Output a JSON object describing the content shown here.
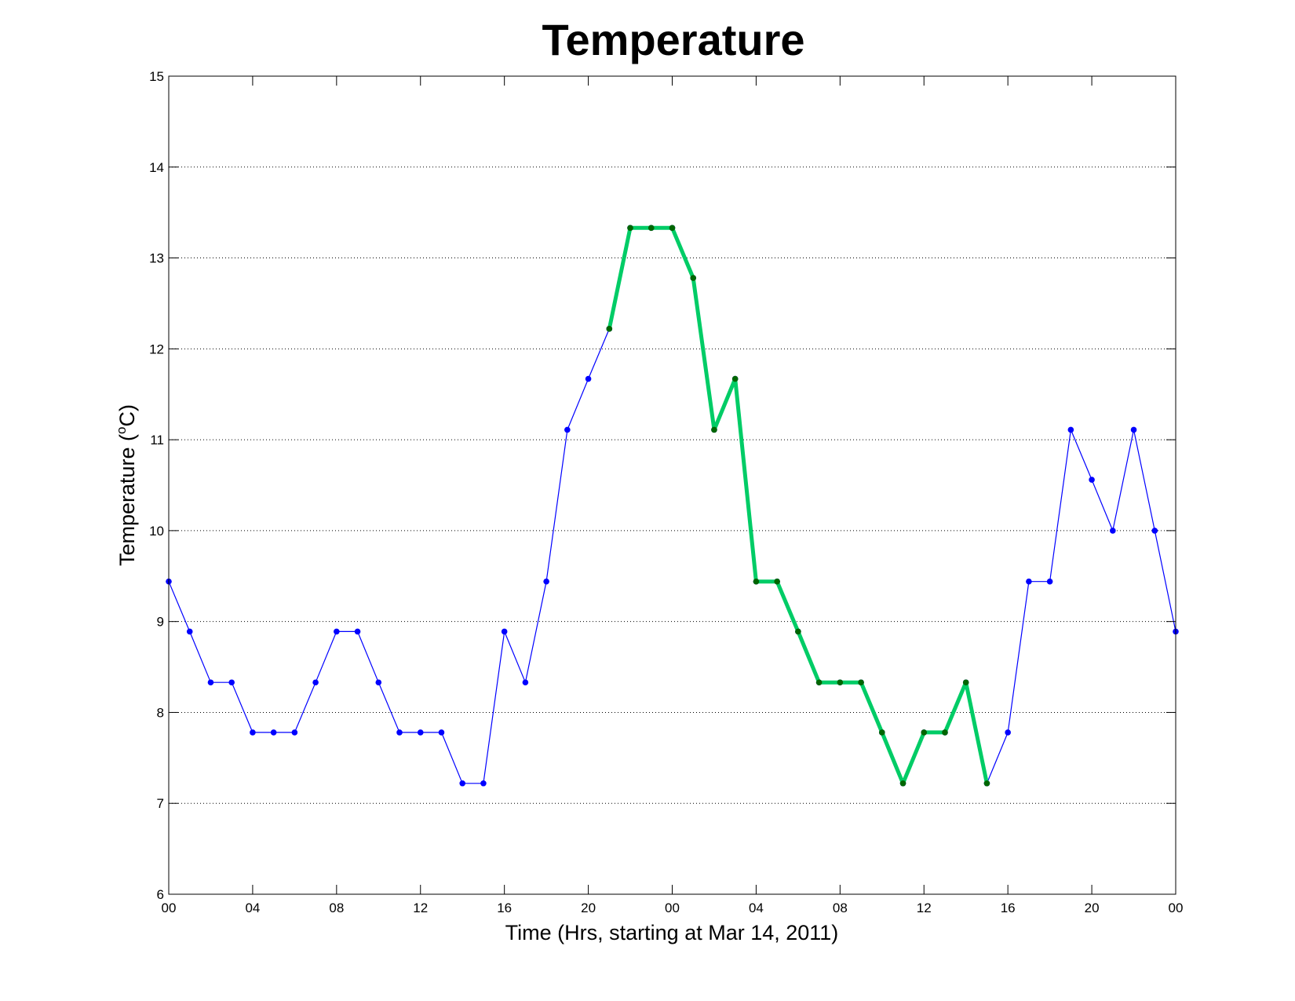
{
  "chart_data": {
    "type": "line",
    "title": "Temperature",
    "xlabel": "Time (Hrs, starting at Mar 14, 2011)",
    "ylabel_main": "Temperature (",
    "ylabel_unit": "o",
    "ylabel_tail": "C)",
    "xlim": [
      0,
      48
    ],
    "ylim": [
      6,
      15
    ],
    "x_ticks": [
      {
        "x": 0,
        "label": "00"
      },
      {
        "x": 4,
        "label": "04"
      },
      {
        "x": 8,
        "label": "08"
      },
      {
        "x": 12,
        "label": "12"
      },
      {
        "x": 16,
        "label": "16"
      },
      {
        "x": 20,
        "label": "20"
      },
      {
        "x": 24,
        "label": "00"
      },
      {
        "x": 28,
        "label": "04"
      },
      {
        "x": 32,
        "label": "08"
      },
      {
        "x": 36,
        "label": "12"
      },
      {
        "x": 40,
        "label": "16"
      },
      {
        "x": 44,
        "label": "20"
      },
      {
        "x": 48,
        "label": "00"
      }
    ],
    "y_ticks": [
      {
        "y": 6,
        "label": "6"
      },
      {
        "y": 7,
        "label": "7"
      },
      {
        "y": 8,
        "label": "8"
      },
      {
        "y": 9,
        "label": "9"
      },
      {
        "y": 10,
        "label": "10"
      },
      {
        "y": 11,
        "label": "11"
      },
      {
        "y": 12,
        "label": "12"
      },
      {
        "y": 13,
        "label": "13"
      },
      {
        "y": 14,
        "label": "14"
      },
      {
        "y": 15,
        "label": "15"
      }
    ],
    "grid": "horizontal dotted",
    "series": [
      {
        "color": "#0000ff",
        "marker_color": "#0000ff",
        "style": "thin line with dot markers",
        "points": [
          [
            0,
            9.44
          ],
          [
            1,
            8.89
          ],
          [
            2,
            8.33
          ],
          [
            3,
            8.33
          ],
          [
            4,
            7.78
          ],
          [
            5,
            7.78
          ],
          [
            6,
            7.78
          ],
          [
            7,
            8.33
          ],
          [
            8,
            8.89
          ],
          [
            9,
            8.89
          ],
          [
            10,
            8.33
          ],
          [
            11,
            7.78
          ],
          [
            12,
            7.78
          ],
          [
            13,
            7.78
          ],
          [
            14,
            7.22
          ],
          [
            15,
            7.22
          ],
          [
            16,
            8.89
          ],
          [
            17,
            8.33
          ],
          [
            18,
            9.44
          ],
          [
            19,
            11.11
          ],
          [
            20,
            11.67
          ],
          [
            21,
            12.22
          ],
          [
            22,
            13.33
          ],
          [
            23,
            13.33
          ],
          [
            24,
            13.33
          ],
          [
            25,
            12.78
          ],
          [
            26,
            11.11
          ],
          [
            27,
            11.67
          ],
          [
            28,
            9.44
          ],
          [
            29,
            9.44
          ],
          [
            30,
            8.89
          ],
          [
            31,
            8.33
          ],
          [
            32,
            8.33
          ],
          [
            33,
            8.33
          ],
          [
            34,
            7.78
          ],
          [
            35,
            7.22
          ],
          [
            36,
            7.78
          ],
          [
            37,
            7.78
          ],
          [
            38,
            8.33
          ],
          [
            39,
            7.22
          ],
          [
            40,
            7.78
          ],
          [
            41,
            9.44
          ],
          [
            42,
            9.44
          ],
          [
            43,
            11.11
          ],
          [
            44,
            10.56
          ],
          [
            45,
            10.0
          ],
          [
            46,
            11.11
          ],
          [
            47,
            10.0
          ],
          [
            48,
            8.89
          ]
        ]
      },
      {
        "color": "#00cc66",
        "marker_color": "#006600",
        "style": "thick line with dot markers",
        "points": [
          [
            21,
            12.22
          ],
          [
            22,
            13.33
          ],
          [
            23,
            13.33
          ],
          [
            24,
            13.33
          ],
          [
            25,
            12.78
          ],
          [
            26,
            11.11
          ],
          [
            27,
            11.67
          ],
          [
            28,
            9.44
          ],
          [
            29,
            9.44
          ],
          [
            30,
            8.89
          ],
          [
            31,
            8.33
          ],
          [
            32,
            8.33
          ],
          [
            33,
            8.33
          ],
          [
            34,
            7.78
          ],
          [
            35,
            7.22
          ],
          [
            36,
            7.78
          ],
          [
            37,
            7.78
          ],
          [
            38,
            8.33
          ],
          [
            39,
            7.22
          ]
        ]
      }
    ]
  }
}
